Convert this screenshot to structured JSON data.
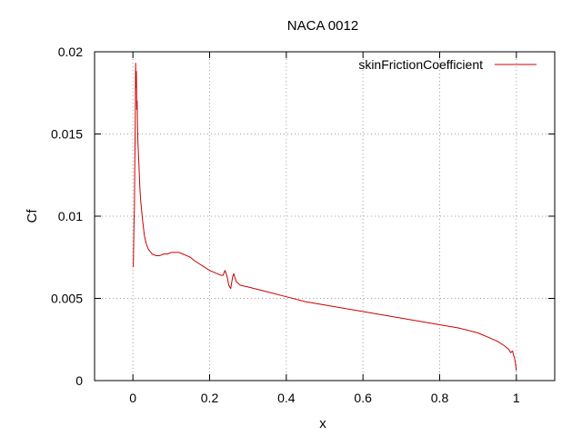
{
  "chart_data": {
    "type": "line",
    "title": "NACA 0012",
    "xlabel": "x",
    "ylabel": "Cf",
    "xlim": [
      -0.1,
      1.1
    ],
    "ylim": [
      0,
      0.02
    ],
    "x_ticks": [
      0,
      0.2,
      0.4,
      0.6,
      0.8,
      1
    ],
    "x_tick_labels": [
      "0",
      "0.2",
      "0.4",
      "0.6",
      "0.8",
      "1"
    ],
    "y_ticks": [
      0,
      0.005,
      0.01,
      0.015,
      0.02
    ],
    "y_tick_labels": [
      "0",
      "0.005",
      "0.01",
      "0.015",
      "0.02"
    ],
    "grid": true,
    "legend_position": "top-right",
    "series": [
      {
        "name": "skinFrictionCoefficient",
        "color": "#cc0000",
        "x": [
          0.001,
          0.003,
          0.004,
          0.005,
          0.006,
          0.007,
          0.008,
          0.009,
          0.01,
          0.011,
          0.012,
          0.013,
          0.015,
          0.018,
          0.02,
          0.025,
          0.03,
          0.035,
          0.04,
          0.05,
          0.06,
          0.07,
          0.08,
          0.09,
          0.1,
          0.11,
          0.12,
          0.13,
          0.14,
          0.15,
          0.16,
          0.18,
          0.2,
          0.21,
          0.22,
          0.23,
          0.235,
          0.24,
          0.245,
          0.25,
          0.255,
          0.26,
          0.263,
          0.267,
          0.27,
          0.275,
          0.28,
          0.3,
          0.35,
          0.4,
          0.45,
          0.5,
          0.55,
          0.6,
          0.65,
          0.7,
          0.75,
          0.8,
          0.85,
          0.9,
          0.93,
          0.95,
          0.97,
          0.98,
          0.985,
          0.99,
          0.992,
          0.995,
          0.998,
          1.0
        ],
        "y": [
          0.0069,
          0.0098,
          0.0105,
          0.0135,
          0.0155,
          0.0193,
          0.0178,
          0.0188,
          0.0165,
          0.017,
          0.0155,
          0.0145,
          0.0135,
          0.0118,
          0.011,
          0.0098,
          0.0088,
          0.0083,
          0.008,
          0.0077,
          0.0076,
          0.0076,
          0.0077,
          0.0077,
          0.0078,
          0.0078,
          0.0078,
          0.0077,
          0.0076,
          0.0075,
          0.0073,
          0.007,
          0.0067,
          0.0066,
          0.0065,
          0.0064,
          0.0064,
          0.0067,
          0.0064,
          0.0058,
          0.0056,
          0.0063,
          0.0065,
          0.0062,
          0.006,
          0.0059,
          0.0058,
          0.0057,
          0.0054,
          0.0051,
          0.0048,
          0.0046,
          0.0044,
          0.0042,
          0.004,
          0.0038,
          0.0036,
          0.0034,
          0.0032,
          0.0029,
          0.0026,
          0.0024,
          0.0021,
          0.0019,
          0.0017,
          0.0018,
          0.0016,
          0.0014,
          0.001,
          0.0006
        ]
      }
    ]
  }
}
